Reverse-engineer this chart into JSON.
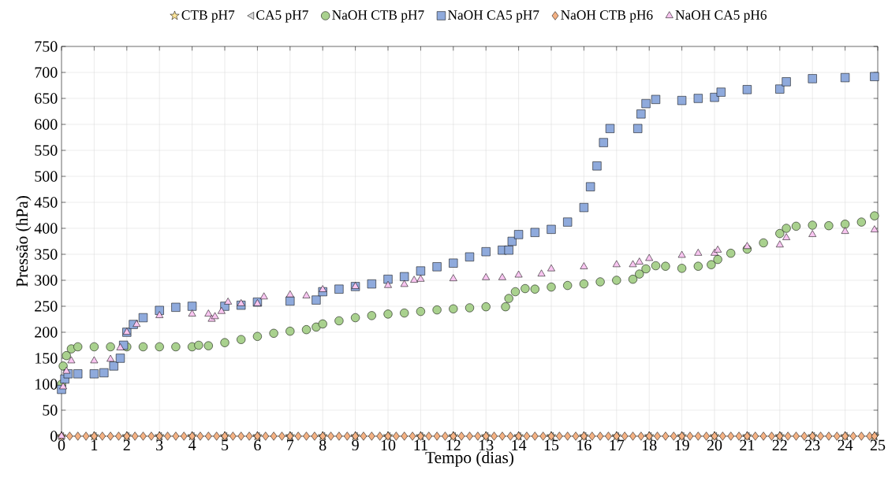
{
  "chart_data": {
    "type": "scatter",
    "xlabel": "Tempo (dias)",
    "ylabel": "Pressão (hPa)",
    "xlim": [
      0,
      25
    ],
    "ylim": [
      0,
      750
    ],
    "xticks": [
      0,
      1,
      2,
      3,
      4,
      5,
      6,
      7,
      8,
      9,
      10,
      11,
      12,
      13,
      14,
      15,
      16,
      17,
      18,
      19,
      20,
      21,
      22,
      23,
      24,
      25
    ],
    "yticks": [
      0,
      50,
      100,
      150,
      200,
      250,
      300,
      350,
      400,
      450,
      500,
      550,
      600,
      650,
      700,
      750
    ],
    "grid": true,
    "legend": "top",
    "series": [
      {
        "name": "CTB pH7",
        "color": "#ffe699",
        "marker": "star",
        "x": [
          0,
          1,
          2,
          3,
          4,
          5,
          6,
          7,
          8,
          9,
          10,
          11,
          12,
          13,
          14,
          15,
          16,
          17,
          18,
          19,
          20,
          21,
          22,
          23,
          24,
          24.9
        ],
        "values": [
          0,
          0,
          0,
          0,
          0,
          0,
          0,
          0,
          0,
          0,
          0,
          0,
          0,
          0,
          0,
          0,
          0,
          0,
          0,
          0,
          0,
          0,
          0,
          0,
          0,
          0
        ]
      },
      {
        "name": "CA5 pH7",
        "color": "#d9d9d9",
        "marker": "triangle-left",
        "x": [
          0,
          1,
          2,
          3,
          4,
          5,
          6,
          7,
          8,
          9,
          10,
          11,
          12,
          13,
          14,
          15,
          16,
          17,
          18,
          19,
          20,
          21,
          22,
          23,
          24,
          24.9
        ],
        "values": [
          0,
          0,
          0,
          0,
          0,
          0,
          0,
          0,
          0,
          0,
          0,
          0,
          0,
          0,
          0,
          0,
          0,
          0,
          0,
          0,
          0,
          0,
          0,
          0,
          0,
          0
        ]
      },
      {
        "name": "NaOH CTB pH7",
        "color": "#a9d18e",
        "marker": "circle",
        "x": [
          0,
          0.05,
          0.15,
          0.3,
          0.5,
          1,
          1.5,
          2,
          2.5,
          3,
          3.5,
          4,
          4.2,
          4.5,
          5,
          5.5,
          6,
          6.5,
          7,
          7.5,
          7.8,
          8,
          8.5,
          9,
          9.5,
          10,
          10.5,
          11,
          11.5,
          12,
          12.5,
          13,
          13.6,
          13.7,
          13.9,
          14.2,
          14.5,
          15,
          15.5,
          16,
          16.5,
          17,
          17.5,
          17.7,
          17.9,
          18.2,
          18.5,
          19,
          19.5,
          19.9,
          20.1,
          20.5,
          21,
          21.5,
          22,
          22.2,
          22.5,
          23,
          23.5,
          24,
          24.5,
          24.9
        ],
        "values": [
          100,
          135,
          155,
          168,
          172,
          172,
          172,
          172,
          172,
          172,
          172,
          172,
          175,
          174,
          180,
          186,
          192,
          198,
          202,
          205,
          210,
          216,
          222,
          228,
          232,
          235,
          237,
          240,
          243,
          245,
          247,
          249,
          249,
          265,
          278,
          284,
          283,
          287,
          290,
          293,
          297,
          300,
          302,
          312,
          322,
          328,
          327,
          323,
          327,
          330,
          340,
          352,
          360,
          372,
          390,
          400,
          404,
          406,
          405,
          408,
          412,
          424
        ]
      },
      {
        "name": "NaOH CA5 pH7",
        "color": "#8faadc",
        "marker": "square",
        "x": [
          0,
          0.1,
          0.2,
          0.5,
          1,
          1.3,
          1.6,
          1.8,
          1.9,
          2,
          2.2,
          2.5,
          3,
          3.5,
          4,
          5,
          5.5,
          6,
          7,
          7.8,
          8,
          8.5,
          9,
          9.5,
          10,
          10.5,
          11,
          11.5,
          12,
          12.5,
          13,
          13.5,
          13.7,
          13.8,
          14,
          14.5,
          15,
          15.5,
          16,
          16.2,
          16.4,
          16.6,
          16.8,
          17.65,
          17.75,
          17.9,
          18.2,
          19,
          19.5,
          20,
          20.2,
          21,
          22,
          22.2,
          23,
          24,
          24.9
        ],
        "values": [
          90,
          110,
          120,
          120,
          120,
          122,
          135,
          150,
          175,
          200,
          215,
          228,
          242,
          248,
          250,
          250,
          252,
          258,
          260,
          262,
          278,
          283,
          288,
          293,
          302,
          307,
          318,
          326,
          333,
          345,
          355,
          358,
          358,
          375,
          388,
          392,
          398,
          412,
          440,
          480,
          520,
          565,
          592,
          592,
          620,
          640,
          648,
          646,
          650,
          652,
          662,
          667,
          668,
          682,
          688,
          690,
          692
        ]
      },
      {
        "name": "NaOH CTB pH6",
        "color": "#f4b183",
        "marker": "diamond",
        "x": [
          0,
          0.25,
          0.5,
          0.75,
          1,
          1.25,
          1.5,
          1.75,
          2,
          2.25,
          2.5,
          2.75,
          3,
          3.25,
          3.5,
          3.75,
          4,
          4.25,
          4.5,
          4.75,
          5,
          5.25,
          5.5,
          5.75,
          6,
          6.25,
          6.5,
          6.75,
          7,
          7.25,
          7.5,
          7.75,
          8,
          8.25,
          8.5,
          8.75,
          9,
          9.25,
          9.5,
          9.75,
          10,
          10.25,
          10.5,
          10.75,
          11,
          11.25,
          11.5,
          11.75,
          12,
          12.25,
          12.5,
          12.75,
          13,
          13.25,
          13.5,
          13.75,
          14,
          14.25,
          14.5,
          14.75,
          15,
          15.25,
          15.5,
          15.75,
          16,
          16.25,
          16.5,
          16.75,
          17,
          17.25,
          17.5,
          17.75,
          18,
          18.25,
          18.5,
          18.75,
          19,
          19.25,
          19.5,
          19.75,
          20,
          20.25,
          20.5,
          20.75,
          21,
          21.25,
          21.5,
          21.75,
          22,
          22.25,
          22.5,
          22.75,
          23,
          23.25,
          23.5,
          23.75,
          24,
          24.25,
          24.5,
          24.75,
          24.9
        ],
        "values": [
          0,
          0,
          0,
          0,
          0,
          0,
          0,
          0,
          0,
          0,
          0,
          0,
          0,
          0,
          0,
          0,
          0,
          0,
          0,
          0,
          0,
          0,
          0,
          0,
          0,
          0,
          0,
          0,
          0,
          0,
          0,
          0,
          0,
          0,
          0,
          0,
          0,
          0,
          0,
          0,
          0,
          0,
          0,
          0,
          0,
          0,
          0,
          0,
          0,
          0,
          0,
          0,
          0,
          0,
          0,
          0,
          0,
          0,
          0,
          0,
          0,
          0,
          0,
          0,
          0,
          0,
          0,
          0,
          0,
          0,
          0,
          0,
          0,
          0,
          0,
          0,
          0,
          0,
          0,
          0,
          0,
          0,
          0,
          0,
          0,
          0,
          0,
          0,
          0,
          0,
          0,
          0,
          0,
          0,
          0,
          0,
          0,
          0,
          0,
          0,
          0
        ]
      },
      {
        "name": "NaOH CA5 pH6",
        "color": "#f8c5f0",
        "marker": "triangle",
        "x": [
          0,
          0.05,
          0.15,
          0.3,
          1,
          1.5,
          1.8,
          2,
          2.3,
          3,
          4,
          4.5,
          4.6,
          4.7,
          4.9,
          5.1,
          5.5,
          6,
          6.2,
          7,
          7.5,
          8,
          9,
          10,
          10.5,
          10.8,
          11,
          12,
          13,
          13.5,
          14,
          14.7,
          15,
          16,
          17,
          17.5,
          17.7,
          18,
          19,
          19.5,
          20,
          20.1,
          21,
          22,
          22.2,
          23,
          24,
          24.9
        ],
        "values": [
          0,
          95,
          125,
          145,
          145,
          148,
          170,
          200,
          215,
          232,
          235,
          235,
          225,
          230,
          240,
          258,
          255,
          255,
          268,
          272,
          270,
          282,
          288,
          290,
          292,
          300,
          302,
          303,
          305,
          305,
          310,
          312,
          322,
          326,
          330,
          330,
          335,
          342,
          348,
          352,
          352,
          358,
          365,
          368,
          382,
          388,
          394,
          397
        ]
      }
    ]
  }
}
